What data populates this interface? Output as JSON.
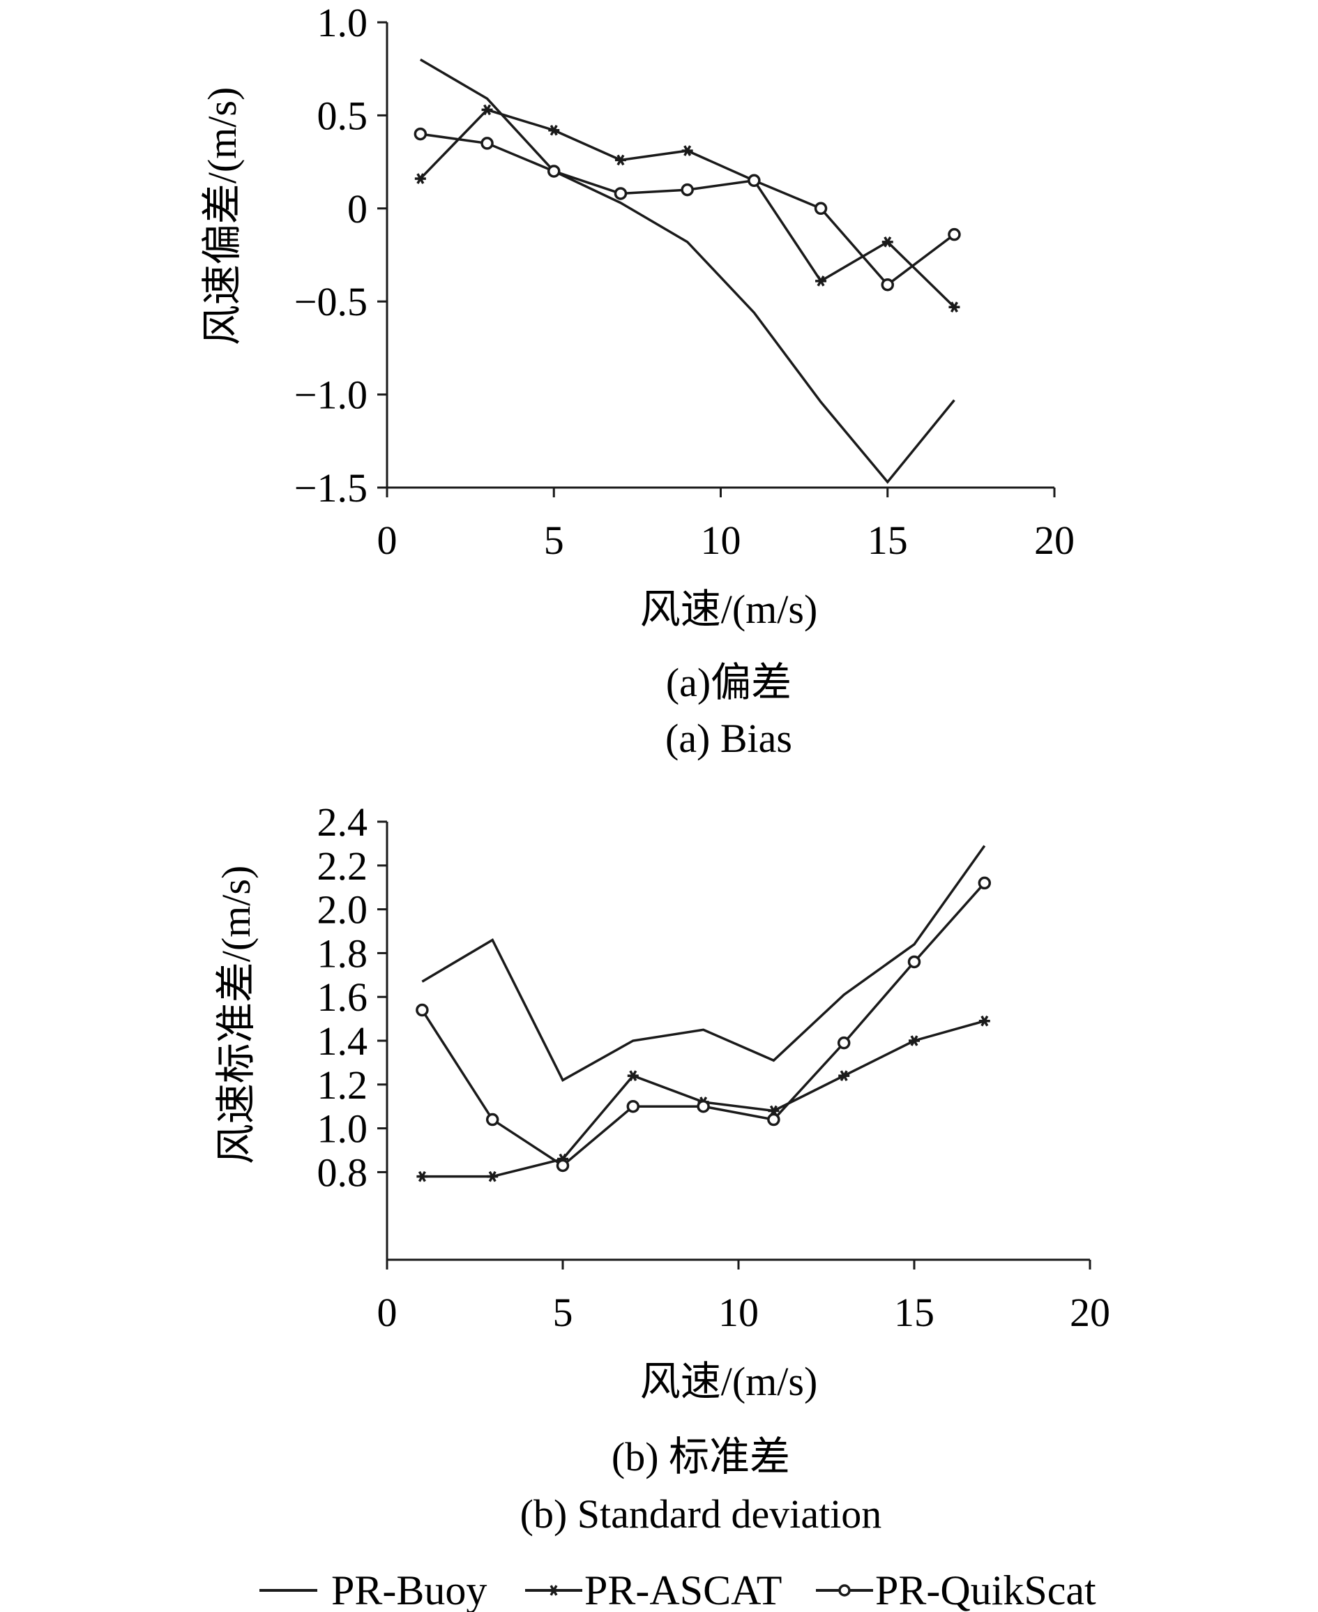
{
  "chart_data": [
    {
      "type": "line",
      "caption_cn": "(a)偏差",
      "caption_en": "(a) Bias",
      "xlabel": "风速/(m/s)",
      "ylabel": "风速偏差/(m/s)",
      "xlim": [
        0,
        20
      ],
      "ylim": [
        -1.5,
        1.0
      ],
      "xticks": [
        0,
        5,
        10,
        15,
        20
      ],
      "xtick_labels": [
        "0",
        "5",
        "10",
        "15",
        "20"
      ],
      "yticks": [
        1.0,
        0.5,
        0,
        -0.5,
        -1.0,
        -1.5
      ],
      "ytick_labels": [
        "1.0",
        "0.5",
        "0",
        "−0.5",
        "−1.0",
        "−1.5"
      ],
      "x": [
        1,
        3,
        5,
        7,
        9,
        11,
        13,
        15,
        17
      ],
      "series": [
        {
          "name": "PR-Buoy",
          "marker": "none",
          "values": [
            0.8,
            0.59,
            0.2,
            0.03,
            -0.18,
            -0.56,
            -1.04,
            -1.47,
            -1.03
          ]
        },
        {
          "name": "PR-ASCAT",
          "marker": "star",
          "values": [
            0.16,
            0.53,
            0.42,
            0.26,
            0.31,
            0.15,
            -0.39,
            -0.18,
            -0.53
          ]
        },
        {
          "name": "PR-QuikScat",
          "marker": "circle",
          "values": [
            0.4,
            0.35,
            0.2,
            0.08,
            0.1,
            0.15,
            0.0,
            -0.41,
            -0.14
          ]
        }
      ]
    },
    {
      "type": "line",
      "caption_cn": "(b) 标准差",
      "caption_en": "(b) Standard deviation",
      "xlabel": "风速/(m/s)",
      "ylabel": "风速标准差/(m/s)",
      "xlim": [
        0,
        20
      ],
      "ylim": [
        0.4,
        2.4
      ],
      "xticks": [
        0,
        5,
        10,
        15,
        20
      ],
      "xtick_labels": [
        "0",
        "5",
        "10",
        "15",
        "20"
      ],
      "yticks": [
        2.4,
        2.2,
        2.0,
        1.8,
        1.6,
        1.4,
        1.2,
        1.0,
        0.8
      ],
      "ytick_labels": [
        "2.4",
        "2.2",
        "2.0",
        "1.8",
        "1.6",
        "1.4",
        "1.2",
        "1.0",
        "0.8"
      ],
      "x": [
        1,
        3,
        5,
        7,
        9,
        11,
        13,
        15,
        17
      ],
      "series": [
        {
          "name": "PR-Buoy",
          "marker": "none",
          "values": [
            1.67,
            1.86,
            1.22,
            1.4,
            1.45,
            1.31,
            1.61,
            1.84,
            2.29
          ]
        },
        {
          "name": "PR-ASCAT",
          "marker": "star",
          "values": [
            0.78,
            0.78,
            0.86,
            1.24,
            1.12,
            1.08,
            1.24,
            1.4,
            1.49
          ]
        },
        {
          "name": "PR-QuikScat",
          "marker": "circle",
          "values": [
            1.54,
            1.04,
            0.83,
            1.1,
            1.1,
            1.04,
            1.39,
            1.76,
            2.12
          ]
        }
      ]
    }
  ],
  "legend": {
    "placement": "bottom",
    "entries": [
      "PR-Buoy",
      "PR-ASCAT",
      "PR-QuikScat"
    ]
  },
  "colors": {
    "ink": "#1a1a1a"
  }
}
